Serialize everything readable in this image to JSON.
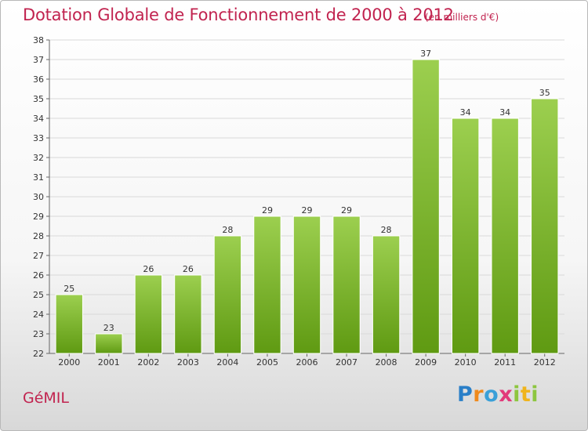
{
  "header": {
    "title": "Dotation Globale de Fonctionnement de 2000 à 2012",
    "subtitle": "(en milliers d'€)"
  },
  "footer": {
    "commune": "GéMIL",
    "logo_letters": [
      "P",
      "r",
      "o",
      "x",
      "i",
      "t",
      "i"
    ]
  },
  "chart_data": {
    "type": "bar",
    "title": "Dotation Globale de Fonctionnement de 2000 à 2012",
    "ylabel": "",
    "xlabel": "",
    "categories": [
      "2000",
      "2001",
      "2002",
      "2003",
      "2004",
      "2005",
      "2006",
      "2007",
      "2008",
      "2009",
      "2010",
      "2011",
      "2012"
    ],
    "values": [
      25,
      23,
      26,
      26,
      28,
      29,
      29,
      29,
      28,
      37,
      34,
      34,
      35
    ],
    "ylim": [
      22,
      38
    ],
    "yticks": [
      22,
      23,
      24,
      25,
      26,
      27,
      28,
      29,
      30,
      31,
      32,
      33,
      34,
      35,
      36,
      37,
      38
    ],
    "grid": true,
    "legend": "none",
    "colors": {
      "bar_top": "#9ccf4f",
      "bar_bottom": "#5f9a12",
      "grid": "#d9d9d9"
    }
  }
}
